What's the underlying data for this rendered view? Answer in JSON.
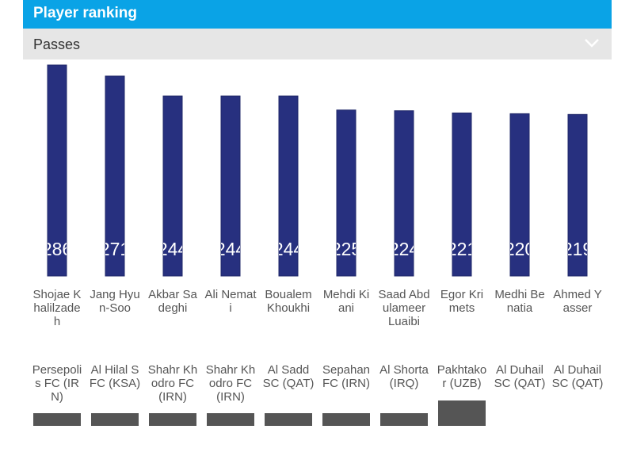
{
  "header": {
    "title": "Player ranking"
  },
  "selector": {
    "selected": "Passes",
    "icon": "chevron-down-icon"
  },
  "colors": {
    "header_bg": "#0aa3e6",
    "bar": "#27307f",
    "dropdown_bg": "#e6e6e6"
  },
  "chart_data": {
    "type": "bar",
    "categories": [
      "Shojae Khalilzadeh",
      "Jang Hyun-Soo",
      "Akbar Sadeghi",
      "Ali Nemati",
      "Boualem Khoukhi",
      "Mehdi Kiani",
      "Saad Abdulameer Luaibi",
      "Egor Krimets",
      "Medhi Benatia",
      "Ahmed Yasser"
    ],
    "values": [
      286,
      271,
      244,
      244,
      244,
      225,
      224,
      221,
      220,
      219
    ],
    "data_labels": [
      "286",
      "271",
      "244",
      "244",
      "244",
      "225",
      "224",
      "221",
      "220",
      "219"
    ],
    "clubs": [
      "Persepolis FC (IRN)",
      "Al Hilal SFC (KSA)",
      "Shahr Khodro FC (IRN)",
      "Shahr Khodro FC (IRN)",
      "Al Sadd SC (QAT)",
      "Sepahan FC (IRN)",
      "Al Shorta (IRQ)",
      "Pakhtakor (UZB)",
      "Al Duhail SC (QAT)",
      "Al Duhail SC (QAT)"
    ],
    "ylim": [
      0,
      286
    ],
    "grid": false,
    "legend": "none"
  }
}
